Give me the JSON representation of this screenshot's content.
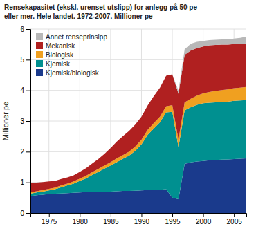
{
  "chart_data": {
    "type": "area",
    "stacked": true,
    "title": "Rensekapasitet (ekskl. urenset utslipp) for anlegg på 50 pe\neller mer. Hele landet. 1972-2007. Millioner pe",
    "ylabel": "Millioner pe",
    "x": [
      1972,
      1973,
      1974,
      1975,
      1976,
      1977,
      1978,
      1979,
      1980,
      1981,
      1982,
      1983,
      1984,
      1985,
      1986,
      1987,
      1988,
      1989,
      1990,
      1991,
      1992,
      1993,
      1994,
      1995,
      1996,
      1997,
      1998,
      1999,
      2000,
      2001,
      2002,
      2003,
      2004,
      2005,
      2006,
      2007
    ],
    "series": [
      {
        "name": "Kjemisk/biologisk",
        "color": "#1a3a8c",
        "values": [
          0.55,
          0.58,
          0.6,
          0.62,
          0.63,
          0.64,
          0.65,
          0.66,
          0.67,
          0.68,
          0.69,
          0.69,
          0.7,
          0.7,
          0.71,
          0.72,
          0.72,
          0.73,
          0.74,
          0.75,
          0.76,
          0.76,
          0.78,
          0.5,
          0.45,
          1.6,
          1.65,
          1.68,
          1.7,
          1.72,
          1.73,
          1.74,
          1.75,
          1.76,
          1.77,
          1.78
        ]
      },
      {
        "name": "Kjemisk",
        "color": "#009090",
        "values": [
          0.08,
          0.09,
          0.1,
          0.12,
          0.15,
          0.2,
          0.25,
          0.3,
          0.38,
          0.45,
          0.55,
          0.65,
          0.75,
          0.85,
          0.95,
          1.05,
          1.15,
          1.3,
          1.5,
          1.8,
          2.0,
          2.2,
          2.5,
          2.8,
          1.7,
          1.75,
          1.8,
          1.85,
          1.88,
          1.88,
          1.88,
          1.88,
          1.88,
          1.9,
          1.9,
          1.9
        ]
      },
      {
        "name": "Biologisk",
        "color": "#f0a020",
        "values": [
          0.04,
          0.04,
          0.05,
          0.05,
          0.05,
          0.06,
          0.06,
          0.07,
          0.07,
          0.08,
          0.09,
          0.1,
          0.1,
          0.11,
          0.12,
          0.12,
          0.13,
          0.14,
          0.15,
          0.16,
          0.17,
          0.18,
          0.2,
          0.22,
          0.24,
          0.26,
          0.28,
          0.3,
          0.32,
          0.35,
          0.37,
          0.39,
          0.4,
          0.41,
          0.42,
          0.43
        ]
      },
      {
        "name": "Mekanisk",
        "color": "#b02020",
        "values": [
          0.3,
          0.28,
          0.26,
          0.24,
          0.22,
          0.21,
          0.2,
          0.2,
          0.22,
          0.25,
          0.28,
          0.32,
          0.38,
          0.46,
          0.55,
          0.62,
          0.68,
          0.72,
          0.75,
          0.8,
          0.88,
          0.95,
          1.0,
          1.0,
          1.5,
          1.55,
          1.57,
          1.55,
          1.53,
          1.52,
          1.5,
          1.48,
          1.46,
          1.44,
          1.42,
          1.42
        ]
      },
      {
        "name": "Annet renseprinsipp",
        "color": "#b8b8b8",
        "values": [
          0.0,
          0.0,
          0.0,
          0.0,
          0.0,
          0.0,
          0.0,
          0.0,
          0.0,
          0.0,
          0.0,
          0.0,
          0.0,
          0.0,
          0.0,
          0.0,
          0.0,
          0.0,
          0.0,
          0.0,
          0.0,
          0.0,
          0.0,
          0.0,
          0.1,
          0.18,
          0.22,
          0.2,
          0.18,
          0.17,
          0.17,
          0.17,
          0.17,
          0.18,
          0.2,
          0.22
        ]
      }
    ],
    "xlim": [
      1972,
      2007
    ],
    "xticks": [
      1975,
      1980,
      1985,
      1990,
      1995,
      2000,
      2005
    ],
    "ylim": [
      0,
      6
    ],
    "yticks": [
      0,
      1,
      2,
      3,
      4,
      5,
      6
    ],
    "grid": true,
    "legend": "upper left"
  }
}
